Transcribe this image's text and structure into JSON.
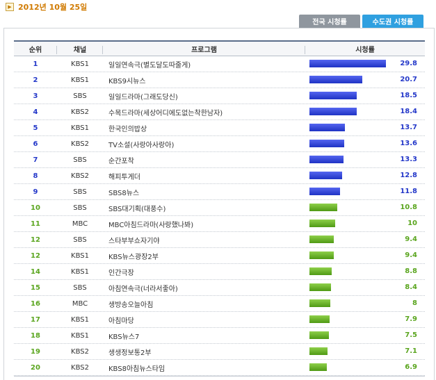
{
  "date": "2012년 10월 25일",
  "tabs": [
    {
      "label": "전국 시청률",
      "active": false
    },
    {
      "label": "수도권 시청률",
      "active": true
    }
  ],
  "headers": {
    "rank": "순위",
    "channel": "채널",
    "program": "프로그램",
    "rating": "시청률"
  },
  "max_rating": 29.8,
  "rows": [
    {
      "rank": "1",
      "channel": "KBS1",
      "program": "일일연속극(별도달도따줄게)",
      "rating": "29.8",
      "value": 29.8,
      "tier": "blue"
    },
    {
      "rank": "2",
      "channel": "KBS1",
      "program": "KBS9시뉴스",
      "rating": "20.7",
      "value": 20.7,
      "tier": "blue"
    },
    {
      "rank": "3",
      "channel": "SBS",
      "program": "일일드라마(그래도당신)",
      "rating": "18.5",
      "value": 18.5,
      "tier": "blue"
    },
    {
      "rank": "4",
      "channel": "KBS2",
      "program": "수목드라마(세상어디에도없는착한남자)",
      "rating": "18.4",
      "value": 18.4,
      "tier": "blue"
    },
    {
      "rank": "5",
      "channel": "KBS1",
      "program": "한국인의밥상",
      "rating": "13.7",
      "value": 13.7,
      "tier": "blue"
    },
    {
      "rank": "6",
      "channel": "KBS2",
      "program": "TV소설(사랑아사랑아)",
      "rating": "13.6",
      "value": 13.6,
      "tier": "blue"
    },
    {
      "rank": "7",
      "channel": "SBS",
      "program": "순간포착",
      "rating": "13.3",
      "value": 13.3,
      "tier": "blue"
    },
    {
      "rank": "8",
      "channel": "KBS2",
      "program": "해피투게더",
      "rating": "12.8",
      "value": 12.8,
      "tier": "blue"
    },
    {
      "rank": "9",
      "channel": "SBS",
      "program": "SBS8뉴스",
      "rating": "11.8",
      "value": 11.8,
      "tier": "blue"
    },
    {
      "rank": "10",
      "channel": "SBS",
      "program": "SBS대기획(대풍수)",
      "rating": "10.8",
      "value": 10.8,
      "tier": "green"
    },
    {
      "rank": "11",
      "channel": "MBC",
      "program": "MBC아침드라마(사랑했나봐)",
      "rating": "10",
      "value": 10,
      "tier": "green"
    },
    {
      "rank": "12",
      "channel": "SBS",
      "program": "스타부부쇼자기야",
      "rating": "9.4",
      "value": 9.4,
      "tier": "green"
    },
    {
      "rank": "12",
      "channel": "KBS1",
      "program": "KBS뉴스광장2부",
      "rating": "9.4",
      "value": 9.4,
      "tier": "green"
    },
    {
      "rank": "14",
      "channel": "KBS1",
      "program": "인간극장",
      "rating": "8.8",
      "value": 8.8,
      "tier": "green"
    },
    {
      "rank": "15",
      "channel": "SBS",
      "program": "아침연속극(너라서좋아)",
      "rating": "8.4",
      "value": 8.4,
      "tier": "green"
    },
    {
      "rank": "16",
      "channel": "MBC",
      "program": "생방송오늘아침",
      "rating": "8",
      "value": 8,
      "tier": "green"
    },
    {
      "rank": "17",
      "channel": "KBS1",
      "program": "아침마당",
      "rating": "7.9",
      "value": 7.9,
      "tier": "green"
    },
    {
      "rank": "18",
      "channel": "KBS1",
      "program": "KBS뉴스7",
      "rating": "7.5",
      "value": 7.5,
      "tier": "green"
    },
    {
      "rank": "19",
      "channel": "KBS2",
      "program": "생생정보통2부",
      "rating": "7.1",
      "value": 7.1,
      "tier": "green"
    },
    {
      "rank": "20",
      "channel": "KBS2",
      "program": "KBS8아침뉴스타임",
      "rating": "6.9",
      "value": 6.9,
      "tier": "green"
    }
  ]
}
